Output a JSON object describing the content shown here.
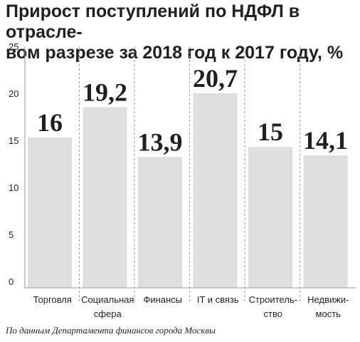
{
  "chart_data": {
    "type": "bar",
    "title": "Прирост поступлений по НДФЛ в отрасле-\nвом разрезе за 2018 год к 2017 году, %",
    "categories": [
      "Торговля",
      "Социальная\nсфера",
      "Финансы",
      "IT и связь",
      "Строитель-\nство",
      "Недвижи-\nмость"
    ],
    "values": [
      16,
      19.2,
      13.9,
      20.7,
      15,
      14.1
    ],
    "value_labels": [
      "16",
      "19,2",
      "13,9",
      "20,7",
      "15",
      "14,1"
    ],
    "yticks": [
      "0",
      "5",
      "10",
      "15",
      "20",
      "25"
    ],
    "ytick_values": [
      0,
      5,
      10,
      15,
      20,
      25
    ],
    "ylim": [
      0,
      25
    ],
    "grid": "vertical-dashed-separators",
    "bar_color": "#dcdfdc"
  },
  "source": "По данным Департамента финансов города Москвы"
}
